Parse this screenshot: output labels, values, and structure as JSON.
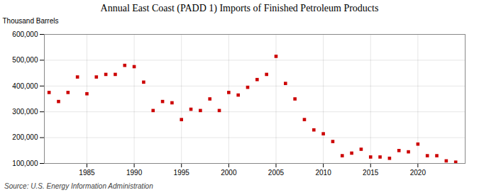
{
  "chart_data": {
    "type": "scatter",
    "title": "Annual East Coast (PADD 1) Imports of Finished Petroleum Products",
    "ylabel": "Thousand Barrels",
    "annotations": [
      "Source: U.S. Energy Information Administration"
    ],
    "color": "#cc0000",
    "marker": "square",
    "grid": true,
    "xlim": [
      1980.5,
      2025
    ],
    "xticks": [
      1985,
      1990,
      1995,
      2000,
      2005,
      2010,
      2015,
      2020
    ],
    "ylim": [
      100000,
      600000
    ],
    "yticks": [
      {
        "value": 100000,
        "label": "100,000"
      },
      {
        "value": 200000,
        "label": "200,000"
      },
      {
        "value": 300000,
        "label": "300,000"
      },
      {
        "value": 400000,
        "label": "400,000"
      },
      {
        "value": 500000,
        "label": "500,000"
      },
      {
        "value": 600000,
        "label": "600,000"
      }
    ],
    "x": [
      1981,
      1982,
      1983,
      1984,
      1985,
      1986,
      1987,
      1988,
      1989,
      1990,
      1991,
      1992,
      1993,
      1994,
      1995,
      1996,
      1997,
      1998,
      1999,
      2000,
      2001,
      2002,
      2003,
      2004,
      2005,
      2006,
      2007,
      2008,
      2009,
      2010,
      2011,
      2012,
      2013,
      2014,
      2015,
      2016,
      2017,
      2018,
      2019,
      2020,
      2021,
      2022,
      2023,
      2024
    ],
    "values": [
      375000,
      340000,
      375000,
      435000,
      370000,
      435000,
      445000,
      445000,
      480000,
      475000,
      415000,
      305000,
      340000,
      335000,
      270000,
      310000,
      305000,
      350000,
      305000,
      375000,
      365000,
      395000,
      425000,
      445000,
      515000,
      410000,
      350000,
      270000,
      230000,
      215000,
      185000,
      130000,
      140000,
      155000,
      125000,
      125000,
      120000,
      150000,
      145000,
      175000,
      130000,
      130000,
      110000,
      105000
    ]
  }
}
